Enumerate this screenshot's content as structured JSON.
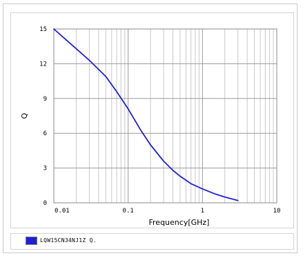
{
  "chart_data": {
    "type": "line",
    "title": "",
    "xlabel": "Frequency[GHz]",
    "ylabel": "Q",
    "x_scale": "log",
    "xlim": [
      0.01,
      10
    ],
    "ylim": [
      0,
      15
    ],
    "grid": true,
    "legend_position": "bottom",
    "x_tick_labels": [
      "0.01",
      "0.1",
      "1",
      "10"
    ],
    "y_tick_labels": [
      "0",
      "3",
      "6",
      "9",
      "12",
      "15"
    ],
    "series": [
      {
        "name": "LQW15CN34NJ1Z Q.",
        "color": "#1f1fd4",
        "x": [
          0.01,
          0.015,
          0.02,
          0.03,
          0.05,
          0.07,
          0.1,
          0.15,
          0.2,
          0.3,
          0.4,
          0.5,
          0.7,
          1,
          1.5,
          2,
          3
        ],
        "y": [
          15.0,
          14.0,
          13.3,
          12.3,
          10.9,
          9.6,
          8.1,
          6.2,
          5.0,
          3.6,
          2.8,
          2.3,
          1.65,
          1.2,
          0.75,
          0.5,
          0.2
        ]
      }
    ]
  }
}
